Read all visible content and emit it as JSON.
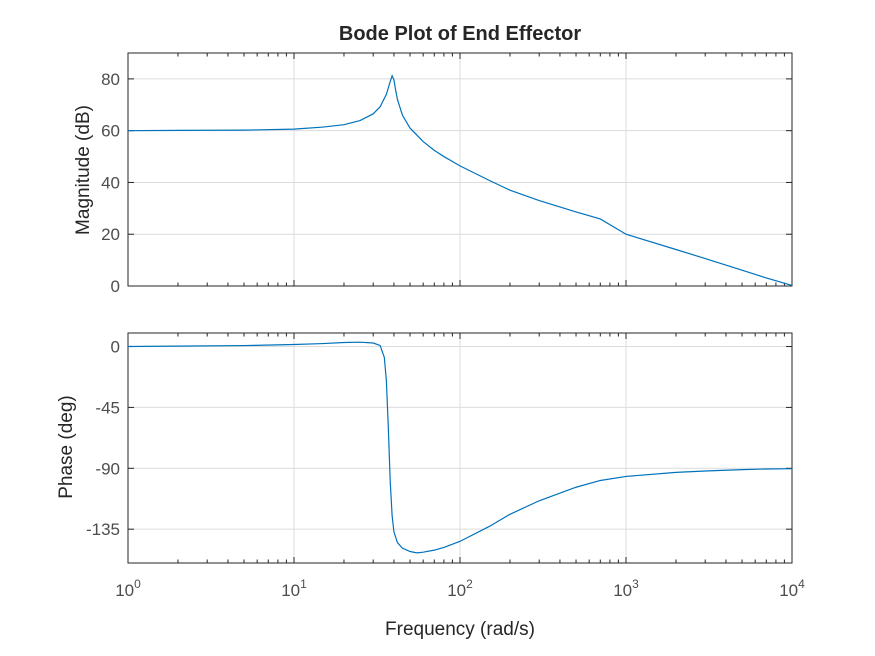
{
  "chart_data": {
    "type": "line",
    "title": "Bode Plot of End Effector",
    "xlabel": "Frequency (rad/s)",
    "xscale": "log",
    "xlim": [
      1,
      10000
    ],
    "x_tick_exponents": [
      "0",
      "1",
      "2",
      "3",
      "4"
    ],
    "x_tick_base": "10",
    "grid": true,
    "line_color": "#0072bd",
    "panels": [
      {
        "ylabel": "Magnitude (dB)",
        "ylim": [
          0,
          90
        ],
        "yticks": [
          "0",
          "20",
          "40",
          "60",
          "80"
        ],
        "tick_values": [
          0,
          20,
          40,
          60,
          80
        ],
        "series": [
          {
            "x": [
              1,
              2,
              5,
              10,
              15,
              20,
              25,
              30,
              33,
              36,
              38,
              39,
              40,
              41,
              42,
              45,
              50,
              60,
              70,
              80,
              100,
              150,
              200,
              300,
              500,
              700,
              1000,
              2000,
              3000,
              5000,
              7000,
              10000
            ],
            "values": [
              60.0,
              60.1,
              60.2,
              60.6,
              61.4,
              62.3,
              63.9,
              66.5,
              69.2,
              74.0,
              79.0,
              81.2,
              79.6,
              75.5,
              72.0,
              66.0,
              61.0,
              55.8,
              52.4,
              50.0,
              46.4,
              40.8,
              37.0,
              33.0,
              28.6,
              25.9,
              20.0,
              14.1,
              10.6,
              6.1,
              3.1,
              0.2
            ]
          }
        ]
      },
      {
        "ylabel": "Phase (deg)",
        "ylim": [
          -160,
          10
        ],
        "yticks": [
          "0",
          "-45",
          "-90",
          "-135"
        ],
        "tick_values": [
          0,
          -45,
          -90,
          -135
        ],
        "series": [
          {
            "x": [
              1,
              2,
              5,
              10,
              15,
              20,
              25,
              30,
              33,
              35,
              36,
              37,
              38,
              39,
              40,
              42,
              45,
              50,
              55,
              60,
              70,
              80,
              100,
              150,
              200,
              300,
              500,
              700,
              1000,
              2000,
              3000,
              5000,
              7000,
              10000
            ],
            "values": [
              0.0,
              0.3,
              0.7,
              1.5,
              2.2,
              3.0,
              3.2,
              2.6,
              0.8,
              -8,
              -25,
              -60,
              -100,
              -125,
              -137,
              -145,
              -149,
              -151.5,
              -152.5,
              -152,
              -150.5,
              -148.5,
              -144,
              -133,
              -124,
              -114,
              -104,
              -99,
              -96,
              -93,
              -92,
              -91,
              -90.5,
              -90.3
            ]
          }
        ]
      }
    ]
  }
}
